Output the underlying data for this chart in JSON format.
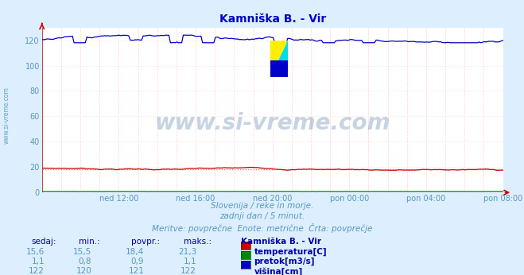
{
  "title": "Kamniška B. - Vir",
  "title_color": "#0000cc",
  "bg_color": "#ddeeff",
  "plot_bg_color": "#ffffff",
  "xlabel_color": "#5599bb",
  "ylim": [
    0,
    130
  ],
  "yticks": [
    0,
    20,
    40,
    60,
    80,
    100,
    120
  ],
  "xtick_labels": [
    "ned 12:00",
    "ned 16:00",
    "ned 20:00",
    "pon 00:00",
    "pon 04:00",
    "pon 08:00"
  ],
  "n_points": 288,
  "temp_mean": 18.4,
  "temp_min": 15.5,
  "temp_max": 21.3,
  "temp_color": "#cc0000",
  "pretok_mean": 0.9,
  "pretok_color": "#008800",
  "visina_mean": 121,
  "visina_color": "#0000cc",
  "watermark_text": "www.si-vreme.com",
  "watermark_color": "#336699",
  "watermark_alpha": 0.28,
  "subtitle1": "Slovenija / reke in morje.",
  "subtitle2": "zadnji dan / 5 minut.",
  "subtitle3": "Meritve: povprečne  Enote: metrične  Črta: povprečje",
  "subtitle_color": "#5599bb",
  "table_header": [
    "sedaj:",
    "min.:",
    "povpr.:",
    "maks.:",
    "Kamniška B. - Vir"
  ],
  "table_color_header": "#0000aa",
  "table_color_values": "#5599bb",
  "table_rows": [
    [
      "15,6",
      "15,5",
      "18,4",
      "21,3",
      "temperatura[C]",
      "#cc0000"
    ],
    [
      "1,1",
      "0,8",
      "0,9",
      "1,1",
      "pretok[m3/s]",
      "#008800"
    ],
    [
      "122",
      "120",
      "121",
      "122",
      "višina[cm]",
      "#0000cc"
    ]
  ]
}
